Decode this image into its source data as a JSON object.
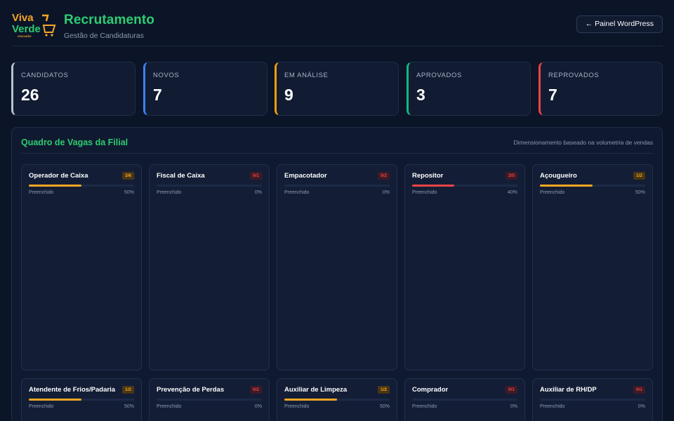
{
  "header": {
    "logo_text_top": "Viva",
    "logo_text_bottom": "Verde",
    "logo_tagline": "ATACADÃO",
    "title": "Recrutamento",
    "subtitle": "Gestão de Candidaturas",
    "wp_button_label": "← Painel WordPress"
  },
  "stats": [
    {
      "label": "CANDIDATOS",
      "value": "26",
      "accent": "#b8c2d4"
    },
    {
      "label": "NOVOS",
      "value": "7",
      "accent": "#3b82f6"
    },
    {
      "label": "EM ANÁLISE",
      "value": "9",
      "accent": "#f59e0b"
    },
    {
      "label": "APROVADOS",
      "value": "3",
      "accent": "#10b981"
    },
    {
      "label": "REPROVADOS",
      "value": "7",
      "accent": "#ef4444"
    }
  ],
  "panel": {
    "title": "Quadro de Vagas da Filial",
    "note": "Dimensionamento baseado na volumetria de vendas"
  },
  "jobs": [
    {
      "name": "Operador de Caixa",
      "badge": "3/6",
      "status": "partial",
      "fill_label": "Preenchido",
      "percent": "50%",
      "fill": 0.5
    },
    {
      "name": "Fiscal de Caixa",
      "badge": "0/1",
      "status": "empty",
      "fill_label": "Preenchido",
      "percent": "0%",
      "fill": 0
    },
    {
      "name": "Empacotador",
      "badge": "0/2",
      "status": "empty",
      "fill_label": "Preenchido",
      "percent": "0%",
      "fill": 0
    },
    {
      "name": "Repositor",
      "badge": "2/5",
      "status": "low",
      "fill_label": "Preenchido",
      "percent": "40%",
      "fill": 0.4
    },
    {
      "name": "Açougueiro",
      "badge": "1/2",
      "status": "partial",
      "fill_label": "Preenchido",
      "percent": "50%",
      "fill": 0.5
    },
    {
      "name": "Atendente de Frios/Padaria",
      "badge": "1/2",
      "status": "partial",
      "fill_label": "Preenchido",
      "percent": "50%",
      "fill": 0.5
    },
    {
      "name": "Prevenção de Perdas",
      "badge": "0/2",
      "status": "empty",
      "fill_label": "Preenchido",
      "percent": "0%",
      "fill": 0
    },
    {
      "name": "Auxiliar de Limpeza",
      "badge": "1/2",
      "status": "partial",
      "fill_label": "Preenchido",
      "percent": "50%",
      "fill": 0.5
    },
    {
      "name": "Comprador",
      "badge": "0/1",
      "status": "empty",
      "fill_label": "Preenchido",
      "percent": "0%",
      "fill": 0
    },
    {
      "name": "Auxiliar de RH/DP",
      "badge": "0/1",
      "status": "empty",
      "fill_label": "Preenchido",
      "percent": "0%",
      "fill": 0
    }
  ],
  "colors": {
    "partial_fill": "#f5a623",
    "low_fill": "#ef4444",
    "partial_badge_bg": "#4a3614",
    "partial_badge_fg": "#f5a623",
    "empty_badge_bg": "#3d1a26",
    "empty_badge_fg": "#ef4444",
    "low_badge_bg": "#3d1a26",
    "low_badge_fg": "#ef4444"
  }
}
